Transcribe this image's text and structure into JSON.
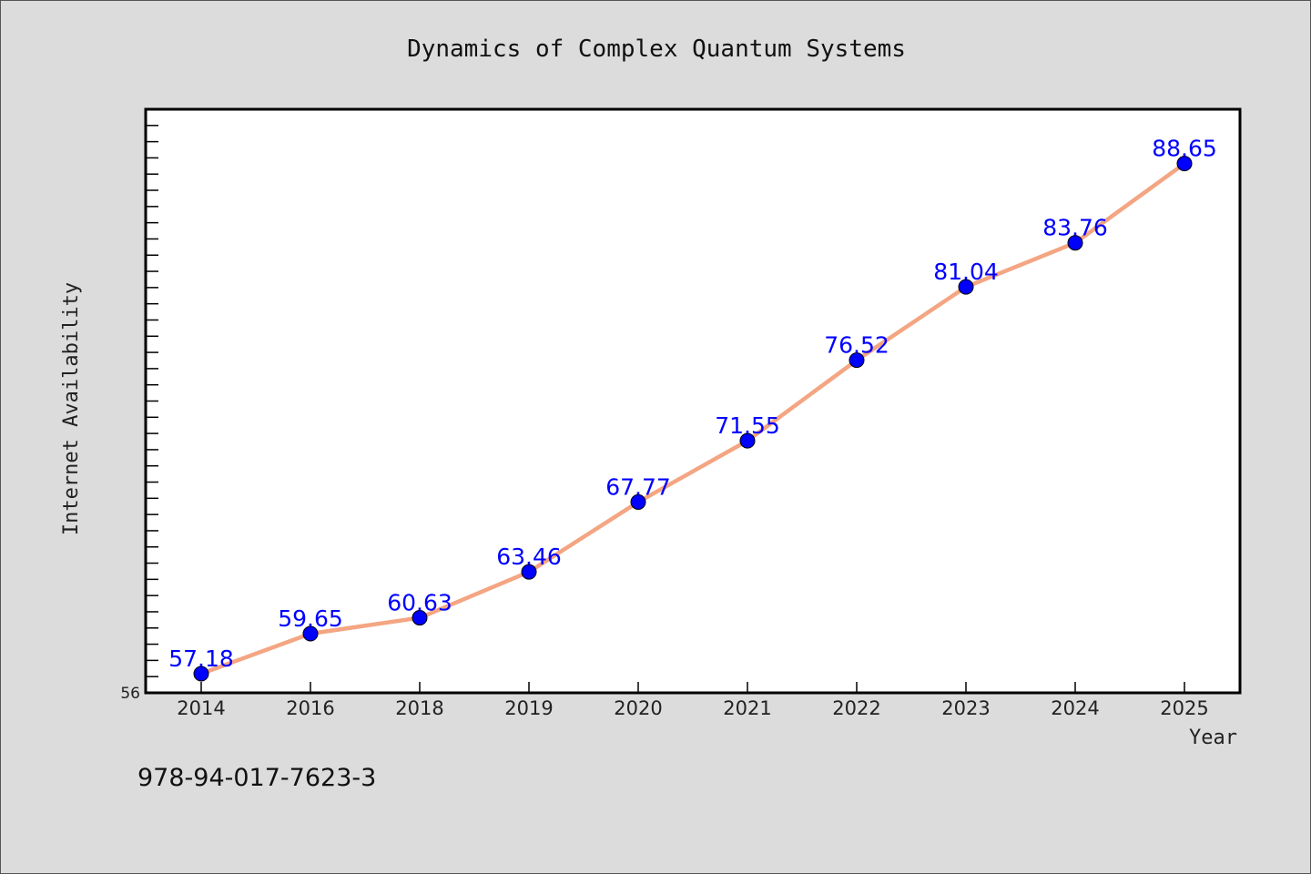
{
  "chart_data": {
    "type": "line",
    "title": "Dynamics of Complex Quantum Systems",
    "xlabel": "Year",
    "ylabel": "Internet Availability",
    "categories": [
      "2014",
      "2016",
      "2018",
      "2019",
      "2020",
      "2021",
      "2022",
      "2023",
      "2024",
      "2025"
    ],
    "series": [
      {
        "values": [
          57.18,
          59.65,
          60.63,
          63.46,
          67.77,
          71.55,
          76.52,
          81.04,
          83.76,
          88.65
        ]
      }
    ],
    "ylim": [
      56,
      92
    ],
    "y_tick_labels": [
      "56"
    ],
    "grid": false,
    "legend": "none",
    "line_color": "#f4a582",
    "marker_color": "#0000ff",
    "label_color": "#0000ff"
  },
  "footer": {
    "isbn": "978-94-017-7623-3"
  }
}
